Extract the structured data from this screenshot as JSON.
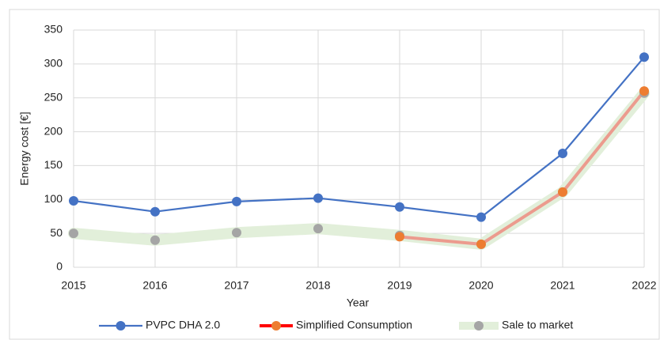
{
  "chart_data": {
    "type": "line",
    "x_label": "Year",
    "y_label": "Energy cost [€]",
    "x": [
      2015,
      2016,
      2017,
      2018,
      2019,
      2020,
      2021,
      2022
    ],
    "xlim": [
      2015,
      2022
    ],
    "xticks": [
      2015,
      2016,
      2017,
      2018,
      2019,
      2020,
      2021,
      2022
    ],
    "ylim": [
      0,
      350
    ],
    "yticks": [
      0,
      50,
      100,
      150,
      200,
      250,
      300,
      350
    ],
    "grid": true,
    "legend": "bottom",
    "series": [
      {
        "name": "PVPC DHA 2.0",
        "color": "#4472c4",
        "marker_color": "#4472c4",
        "line_width": 2.2,
        "line_opacity": 1,
        "values": [
          98,
          82,
          97,
          102,
          89,
          74,
          168,
          310
        ]
      },
      {
        "name": "Simplified Consumption",
        "color": "#ff0000",
        "marker_color": "#ed7d31",
        "line_width": 4,
        "line_opacity": 0.35,
        "values": [
          null,
          null,
          null,
          null,
          45,
          34,
          111,
          260
        ]
      },
      {
        "name": "Sale to market",
        "color": "#e2efda",
        "marker_color": "#a5a5a5",
        "line_width": 14,
        "line_opacity": 1,
        "values": [
          50,
          40,
          51,
          57,
          47,
          34,
          111,
          257
        ]
      }
    ]
  }
}
